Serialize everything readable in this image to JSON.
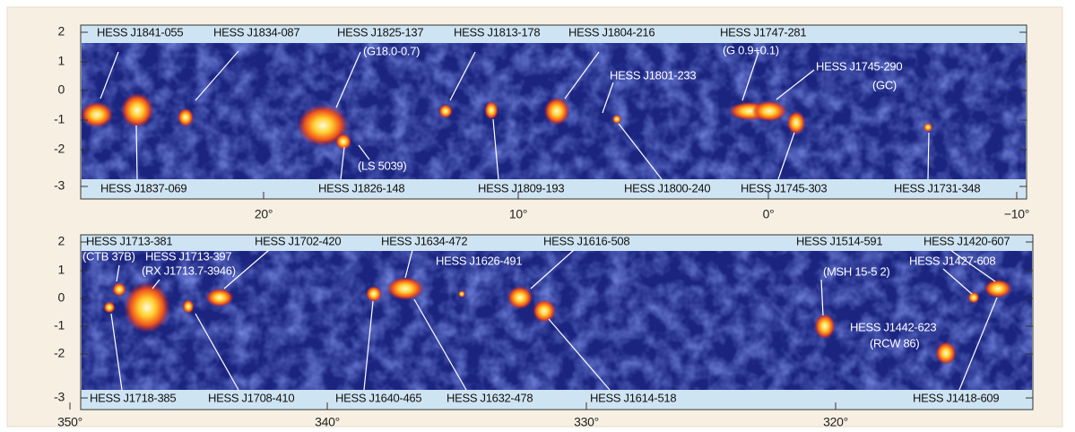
{
  "panels": [
    {
      "y_ticks": [
        "2",
        "1",
        "0",
        "-1",
        "-2",
        "-3"
      ],
      "x_ticks": [
        "20°",
        "10°",
        "0°",
        "−10°"
      ],
      "labels": [
        "HESS J1841-055",
        "HESS J1834-087",
        "HESS J1825-137",
        "(G18.0-0.7)",
        "HESS J1813-178",
        "HESS J1804-216",
        "HESS J1801-233",
        "HESS J1747-281",
        "(G 0.9+0.1)",
        "HESS J1745-290",
        "(GC)",
        "(LS 5039)",
        "HESS J1837-069",
        "HESS J1826-148",
        "HESS J1809-193",
        "HESS J1800-240",
        "HESS J1745-303",
        "HESS J1731-348"
      ]
    },
    {
      "y_ticks": [
        "2",
        "1",
        "0",
        "-1",
        "-2",
        "-3"
      ],
      "x_ticks": [
        "350°",
        "340°",
        "330°",
        "320°"
      ],
      "labels": [
        "HESS J1713-381",
        "(CTB 37B)",
        "HESS J1713-397",
        "(RX J1713.7-3946)",
        "HESS J1702-420",
        "HESS J1634-472",
        "HESS J1626-491",
        "HESS J1616-508",
        "HESS J1514-591",
        "(MSH 15-5 2)",
        "HESS J1420-607",
        "HESS J1427-608",
        "HESS J1442-623",
        "(RCW 86)",
        "HESS J1718-385",
        "HESS J1708-410",
        "HESS J1640-465",
        "HESS J1632-478",
        "HESS J1614-518",
        "HESS J1418-609"
      ]
    }
  ]
}
